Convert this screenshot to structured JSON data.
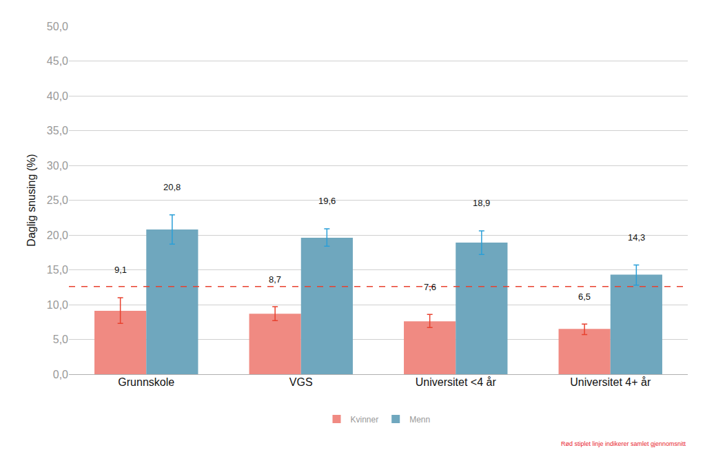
{
  "chart_data": {
    "type": "bar",
    "y_label": "Daglig snusing (%)",
    "categories": [
      "Grunnskole",
      "VGS",
      "Universitet <4 år",
      "Universitet 4+ år"
    ],
    "series": [
      {
        "name": "Kvinner",
        "color": "#f08a82",
        "values": [
          9.1,
          8.7,
          7.6,
          6.5
        ],
        "value_labels": [
          "9,1",
          "8,7",
          "7,6",
          "6,5"
        ],
        "error_plus": [
          1.9,
          1.0,
          1.0,
          0.7
        ],
        "error_minus": [
          1.8,
          1.0,
          0.9,
          0.8
        ]
      },
      {
        "name": "Menn",
        "color": "#6fa7be",
        "values": [
          20.8,
          19.6,
          18.9,
          14.3
        ],
        "value_labels": [
          "20,8",
          "19,6",
          "18,9",
          "14,3"
        ],
        "error_plus": [
          2.1,
          1.3,
          1.7,
          1.4
        ],
        "error_minus": [
          2.1,
          1.2,
          1.7,
          1.5
        ]
      }
    ],
    "ylim": [
      0,
      50
    ],
    "yticks": [
      {
        "value": 0,
        "label": "0,0"
      },
      {
        "value": 5,
        "label": "5,0"
      },
      {
        "value": 10,
        "label": "10,0"
      },
      {
        "value": 15,
        "label": "15,0"
      },
      {
        "value": 20,
        "label": "20,0"
      },
      {
        "value": 25,
        "label": "25,0"
      },
      {
        "value": 30,
        "label": "30,0"
      },
      {
        "value": 35,
        "label": "35,0"
      },
      {
        "value": 40,
        "label": "40,0"
      },
      {
        "value": 45,
        "label": "45,0"
      },
      {
        "value": 50,
        "label": "50,0"
      }
    ],
    "grid": true,
    "legend": "bottom",
    "data_labels": true,
    "reference_line": {
      "value": 12.6,
      "color": "#e8412e",
      "line_style": "dashed"
    },
    "note": "Rød stiplet linje indikerer samlet gjennomsnitt"
  }
}
